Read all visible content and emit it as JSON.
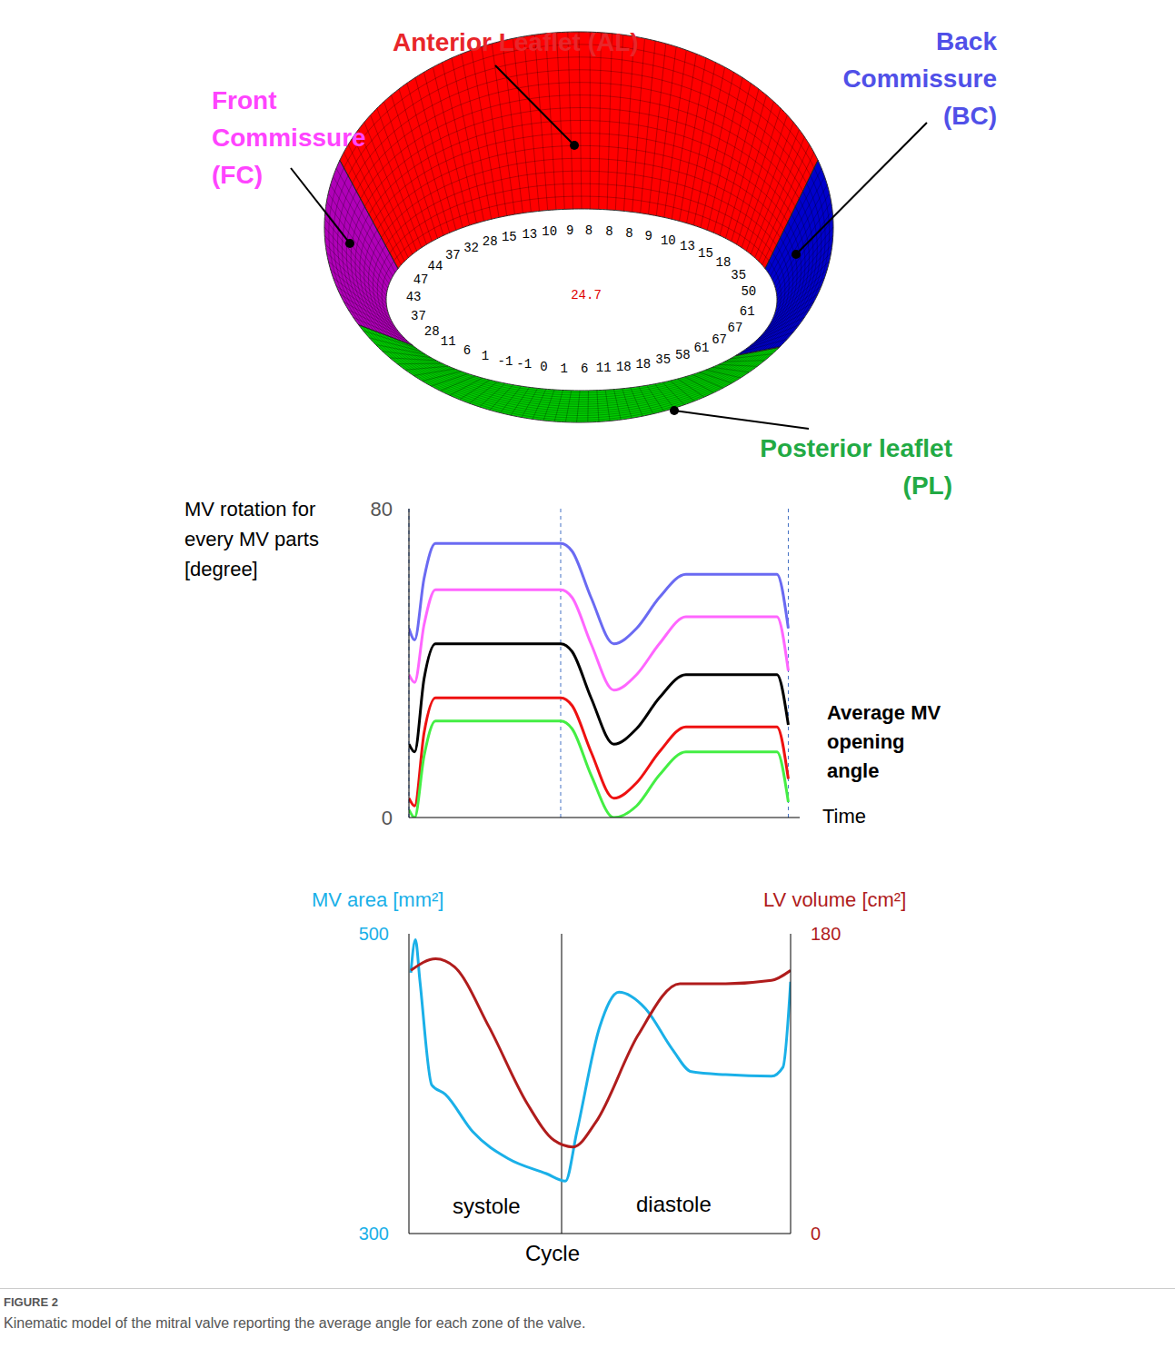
{
  "diagram": {
    "regions": [
      {
        "label": [
          "Anterior Leaflet (AL)"
        ],
        "color": "#ff0000",
        "text_color": "#e8262a"
      },
      {
        "label": [
          "Back",
          "Commissure",
          "(BC)"
        ],
        "color": "#0000cc",
        "text_color": "#5050e8"
      },
      {
        "label": [
          "Posterior leaflet",
          "(PL)"
        ],
        "color": "#00cc00",
        "text_color": "#22aa44"
      },
      {
        "label": [
          "Front",
          "Commissure",
          "(FC)"
        ],
        "color": "#b000b8",
        "text_color": "#ff44ff"
      }
    ],
    "orifice_values": [
      47,
      44,
      37,
      32,
      28,
      15,
      13,
      10,
      9,
      8,
      8,
      8,
      9,
      10,
      13,
      15,
      18,
      35,
      50,
      61,
      67,
      67,
      61,
      58,
      35,
      18,
      18,
      11,
      6,
      1,
      0,
      -1,
      -1,
      1,
      6,
      11,
      28,
      37,
      43
    ],
    "center_value": 24.7
  },
  "chart_data": [
    {
      "type": "line",
      "ylabel": "MV rotation for every MV parts [degree]",
      "xlabel": "Time",
      "x": [
        0,
        1.5,
        4,
        7,
        40,
        43,
        48,
        54,
        60,
        66,
        73,
        97,
        100
      ],
      "series": [
        {
          "color": "#6a6af2",
          "values": [
            49,
            46,
            62,
            71,
            71,
            69,
            57,
            45,
            49,
            57,
            63,
            63,
            49
          ]
        },
        {
          "color": "#ff66ff",
          "values": [
            37,
            35,
            50,
            59,
            59,
            57,
            45,
            33,
            37,
            45,
            52,
            52,
            38
          ]
        },
        {
          "name": "Average MV opening angle",
          "color": "#000000",
          "values": [
            19,
            17,
            36,
            45,
            45,
            43,
            31,
            19,
            23,
            31,
            37,
            37,
            24
          ]
        },
        {
          "color": "#ee1111",
          "values": [
            5,
            3,
            22,
            31,
            31,
            29,
            17,
            5,
            9,
            17,
            23.5,
            23.5,
            10
          ]
        },
        {
          "color": "#44ee44",
          "values": [
            2,
            0,
            16,
            25,
            25,
            23,
            11,
            0,
            3,
            11,
            17,
            17,
            4
          ]
        }
      ],
      "xlim": [
        0,
        103
      ],
      "ylim": [
        0,
        80
      ],
      "yticks": [
        0,
        80
      ],
      "tick_labels": "y",
      "vlines": [
        0,
        40,
        100
      ]
    },
    {
      "type": "line",
      "xlabel": "Cycle",
      "ylabel": "MV area [mm²]",
      "y2label": "LV volume [cm²]",
      "series": [
        {
          "color": "#1ab0e8",
          "x": [
            0.5,
            1.7,
            2.9,
            6,
            9.5,
            16.7,
            26,
            36,
            41,
            44,
            50,
            55,
            62,
            69,
            74,
            83,
            95,
            98,
            100
          ],
          "values": [
            474,
            496,
            468,
            399,
            393,
            368,
            350,
            340,
            335,
            368,
            438,
            461,
            450,
            423,
            408,
            406,
            405,
            411,
            468
          ]
        },
        {
          "color": "#b01c1c",
          "axis": "y2",
          "x": [
            0.5,
            7,
            12,
            21,
            31,
            38,
            43,
            49,
            60,
            71,
            83,
            95,
            100
          ],
          "values": [
            158,
            165,
            160,
            124,
            78,
            56,
            52,
            67,
            119,
            150,
            150,
            152,
            158
          ]
        }
      ],
      "xlim": [
        0,
        100
      ],
      "ylim": [
        300,
        500
      ],
      "yticks": [
        300,
        500
      ],
      "y2lim": [
        0,
        180
      ],
      "y2ticks": [
        0,
        180
      ],
      "tick_labels": "y",
      "vlines": [
        40
      ],
      "annotations": [
        "systole",
        "diastole"
      ]
    }
  ],
  "figure": {
    "label": "FIGURE 2",
    "caption": "Kinematic model of the mitral valve reporting the average angle for each zone of the valve."
  }
}
